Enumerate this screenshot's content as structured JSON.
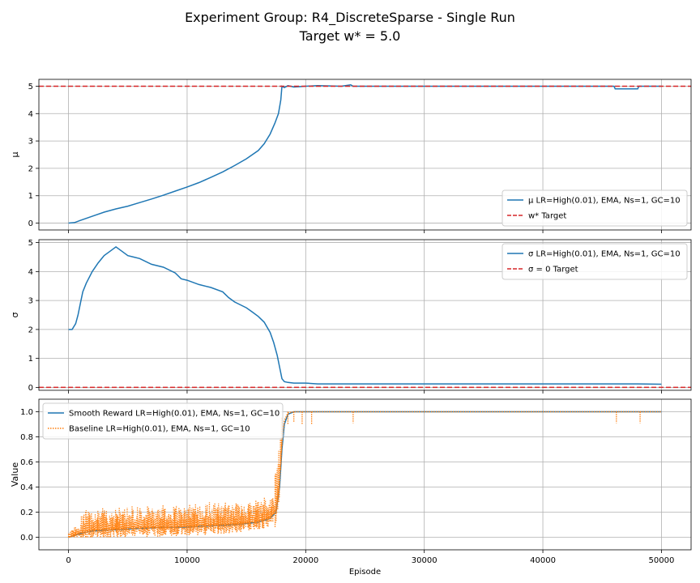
{
  "figure": {
    "title_line1": "Experiment Group: R4_DiscreteSparse - Single Run",
    "title_line2": "Target w* = 5.0"
  },
  "chart_data": [
    {
      "type": "line",
      "panel": "mu",
      "ylabel": "μ",
      "xlim": [
        -2500,
        52500
      ],
      "ylim": [
        -0.25,
        5.25
      ],
      "yticks": [
        0,
        1,
        2,
        3,
        4,
        5
      ],
      "xticks": [
        0,
        10000,
        20000,
        30000,
        40000,
        50000
      ],
      "grid": true,
      "legend_position": "lower-right",
      "series": [
        {
          "name": "μ LR=High(0.01), EMA, Ns=1, GC=10",
          "color": "#1f77b4",
          "style": "solid",
          "x": [
            0,
            500,
            1000,
            2000,
            3000,
            4000,
            5000,
            6000,
            7000,
            8000,
            9000,
            10000,
            11000,
            12000,
            13000,
            14000,
            15000,
            16000,
            16500,
            17000,
            17400,
            17700,
            17900,
            18000,
            18200,
            18500,
            19000,
            20000,
            21000,
            23000,
            23800,
            24000,
            24500,
            30000,
            40000,
            46000,
            46100,
            48000,
            48100,
            50000
          ],
          "y": [
            0.0,
            0.02,
            0.1,
            0.25,
            0.4,
            0.52,
            0.62,
            0.75,
            0.88,
            1.02,
            1.17,
            1.32,
            1.48,
            1.67,
            1.87,
            2.1,
            2.35,
            2.65,
            2.9,
            3.25,
            3.65,
            4.0,
            4.5,
            5.0,
            4.95,
            5.02,
            4.97,
            5.0,
            5.02,
            5.0,
            5.05,
            5.0,
            5.0,
            5.0,
            5.0,
            5.0,
            4.9,
            4.9,
            5.0,
            5.0
          ]
        },
        {
          "name": "w* Target",
          "color": "#d62728",
          "style": "dashed",
          "constant": 5.0
        }
      ]
    },
    {
      "type": "line",
      "panel": "sigma",
      "ylabel": "σ",
      "xlim": [
        -2500,
        52500
      ],
      "ylim": [
        -0.1,
        5.1
      ],
      "yticks": [
        0,
        1,
        2,
        3,
        4,
        5
      ],
      "xticks": [
        0,
        10000,
        20000,
        30000,
        40000,
        50000
      ],
      "grid": true,
      "legend_position": "upper-right",
      "series": [
        {
          "name": "σ LR=High(0.01), EMA, Ns=1, GC=10",
          "color": "#1f77b4",
          "style": "solid",
          "x": [
            0,
            300,
            600,
            800,
            1000,
            1200,
            1500,
            2000,
            2500,
            3000,
            3500,
            4000,
            4500,
            5000,
            5500,
            6000,
            7000,
            8000,
            9000,
            9500,
            10000,
            11000,
            12000,
            13000,
            13500,
            14000,
            14500,
            15000,
            15500,
            16000,
            16500,
            17000,
            17300,
            17600,
            17800,
            18000,
            18200,
            18500,
            19000,
            20000,
            21000,
            30000,
            40000,
            46000,
            48000,
            50000
          ],
          "y": [
            2.0,
            2.0,
            2.2,
            2.5,
            2.9,
            3.3,
            3.6,
            4.0,
            4.3,
            4.55,
            4.7,
            4.85,
            4.7,
            4.55,
            4.5,
            4.45,
            4.25,
            4.15,
            3.95,
            3.75,
            3.7,
            3.55,
            3.45,
            3.3,
            3.1,
            2.95,
            2.85,
            2.75,
            2.6,
            2.45,
            2.25,
            1.9,
            1.55,
            1.1,
            0.7,
            0.3,
            0.2,
            0.17,
            0.15,
            0.15,
            0.12,
            0.12,
            0.12,
            0.12,
            0.12,
            0.11
          ]
        },
        {
          "name": "σ = 0 Target",
          "color": "#d62728",
          "style": "dashed",
          "constant": 0
        }
      ]
    },
    {
      "type": "line",
      "panel": "reward",
      "ylabel": "Value",
      "xlabel": "Episode",
      "xlim": [
        -2500,
        52500
      ],
      "ylim": [
        -0.1,
        1.1
      ],
      "yticks": [
        0.0,
        0.2,
        0.4,
        0.6,
        0.8,
        1.0
      ],
      "xticks": [
        0,
        10000,
        20000,
        30000,
        40000,
        50000
      ],
      "grid": true,
      "legend_position": "upper-left",
      "series": [
        {
          "name": "Smooth Reward LR=High(0.01), EMA, Ns=1, GC=10",
          "color": "#1f77b4",
          "style": "solid",
          "x": [
            0,
            1000,
            2000,
            4000,
            6000,
            8000,
            10000,
            12000,
            14000,
            16000,
            17000,
            17500,
            17800,
            18000,
            18200,
            18500,
            19000,
            20000,
            50000
          ],
          "y": [
            0.0,
            0.03,
            0.05,
            0.06,
            0.07,
            0.08,
            0.08,
            0.09,
            0.1,
            0.12,
            0.15,
            0.2,
            0.4,
            0.7,
            0.9,
            0.98,
            1.0,
            1.0,
            1.0
          ]
        },
        {
          "name": "Baseline LR=High(0.01), EMA, Ns=1, GC=10",
          "color": "#ff7f0e",
          "style": "dotted",
          "noisy_band_until": 18000,
          "x": [
            0,
            1000,
            2000,
            4000,
            6000,
            8000,
            10000,
            12000,
            14000,
            16000,
            17000,
            17500,
            17800,
            18000,
            18200,
            18500,
            19000,
            20000,
            50000
          ],
          "y": [
            0.0,
            0.04,
            0.06,
            0.07,
            0.08,
            0.08,
            0.09,
            0.1,
            0.11,
            0.13,
            0.16,
            0.22,
            0.45,
            0.75,
            0.93,
            0.99,
            1.0,
            1.0,
            1.0
          ],
          "dips": [
            {
              "x": 18500,
              "y": 0.9
            },
            {
              "x": 19000,
              "y": 0.92
            },
            {
              "x": 19700,
              "y": 0.9
            },
            {
              "x": 20500,
              "y": 0.9
            },
            {
              "x": 24000,
              "y": 0.91
            },
            {
              "x": 46200,
              "y": 0.91
            },
            {
              "x": 48200,
              "y": 0.91
            }
          ]
        }
      ]
    }
  ]
}
